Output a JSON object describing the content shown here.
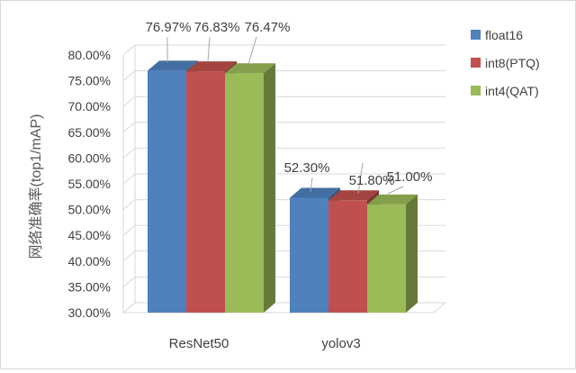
{
  "chart_data": {
    "type": "bar",
    "categories": [
      "ResNet50",
      "yolov3"
    ],
    "series": [
      {
        "name": "float16",
        "values": [
          76.97,
          52.3
        ],
        "labels": [
          "76.97%",
          "52.30%"
        ],
        "color": "#4F81BD"
      },
      {
        "name": "int8(PTQ)",
        "values": [
          76.83,
          51.8
        ],
        "labels": [
          "76.83%",
          "51.80%"
        ],
        "color": "#C0504D"
      },
      {
        "name": "int4(QAT)",
        "values": [
          76.47,
          51.0
        ],
        "labels": [
          "76.47%",
          "51.00%"
        ],
        "color": "#9BBB59"
      }
    ],
    "title": "",
    "xlabel": "",
    "ylabel": "网络准确率(top1/mAP)",
    "ylim": [
      30,
      80
    ],
    "yticks": [
      30,
      35,
      40,
      45,
      50,
      55,
      60,
      65,
      70,
      75,
      80
    ],
    "ytick_labels": [
      "30.00%",
      "35.00%",
      "40.00%",
      "45.00%",
      "50.00%",
      "55.00%",
      "60.00%",
      "65.00%",
      "70.00%",
      "75.00%",
      "80.00%"
    ],
    "grid": true,
    "legend": "right",
    "style": "3d-clustered"
  }
}
